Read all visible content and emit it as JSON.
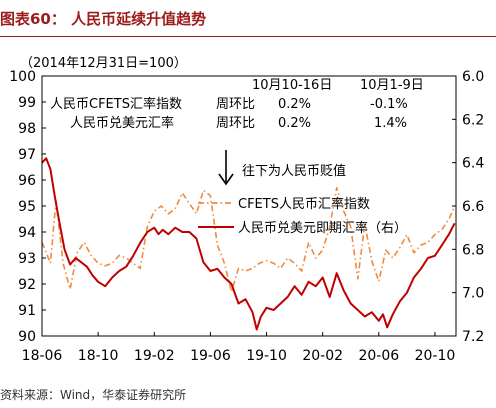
{
  "header": {
    "title": "图表60：  人民币延续升值趋势"
  },
  "footer": {
    "source": "资料来源：Wind，华泰证券研究所"
  },
  "chart_data": {
    "type": "line",
    "base_note": "（2014年12月31日=100）",
    "x_tick_labels": [
      "18-06",
      "18-10",
      "19-02",
      "19-06",
      "19-10",
      "20-02",
      "20-06",
      "20-10"
    ],
    "x_tick_months": [
      0,
      4,
      8,
      12,
      16,
      20,
      24,
      28
    ],
    "x_range_months": [
      0,
      29.5
    ],
    "ylim_left": [
      90,
      100
    ],
    "y_ticks_left": [
      90,
      91,
      92,
      93,
      94,
      95,
      96,
      97,
      98,
      99,
      100
    ],
    "ylim_right": [
      7.2,
      6.0
    ],
    "y_ticks_right": [
      "6.0",
      "6.2",
      "6.4",
      "6.6",
      "6.8",
      "7.0",
      "7.2"
    ],
    "y_ticks_right_values": [
      6.0,
      6.2,
      6.4,
      6.6,
      6.8,
      7.0,
      7.2
    ],
    "grid": false,
    "table": {
      "headers": [
        "10月10-16日",
        "10月1-9日"
      ],
      "rows": [
        {
          "name": "人民币CFETS汇率指数",
          "period": "周环比",
          "values": [
            "0.2%",
            "-0.1%"
          ]
        },
        {
          "name": "人民币兑美元汇率",
          "period": "周环比",
          "values": [
            "0.2%",
            "1.4%"
          ]
        }
      ]
    },
    "annotation": {
      "arrow_text": "往下为人民币贬值"
    },
    "legend": {
      "position": "center-right",
      "entries": [
        "CFETS人民币汇率指数",
        "人民币兑美元即期汇率（右）"
      ]
    },
    "colors": {
      "cfets": "#f08a3c",
      "usdcny": "#c00000",
      "title": "#9c1c1c"
    },
    "series": [
      {
        "name": "CFETS人民币汇率指数",
        "axis": "left",
        "style": "dash-dot",
        "x": [
          0,
          0.3,
          0.6,
          1.0,
          1.5,
          2.0,
          2.5,
          3.0,
          3.5,
          4.0,
          4.5,
          5.0,
          5.5,
          6.0,
          6.5,
          7.0,
          7.5,
          8.0,
          8.5,
          9.0,
          9.5,
          10.0,
          10.5,
          11.0,
          11.5,
          12.0,
          12.5,
          13.0,
          13.5,
          14.0,
          14.5,
          15.0,
          15.5,
          16.0,
          16.5,
          17.0,
          17.5,
          18.0,
          18.5,
          19.0,
          19.5,
          20.0,
          20.5,
          21.0,
          21.5,
          22.0,
          22.5,
          23.0,
          23.5,
          24.0,
          24.5,
          25.0,
          25.5,
          26.0,
          26.5,
          27.0,
          27.5,
          28.0,
          28.5,
          29.0,
          29.4
        ],
        "values": [
          93.6,
          93.2,
          92.8,
          95.2,
          92.8,
          91.8,
          93.2,
          93.6,
          93.1,
          92.8,
          92.7,
          92.8,
          93.1,
          93.0,
          92.8,
          92.6,
          94.2,
          94.8,
          95.0,
          94.7,
          94.9,
          95.5,
          95.1,
          94.7,
          95.6,
          95.4,
          93.5,
          92.8,
          91.7,
          92.6,
          92.5,
          92.6,
          92.8,
          92.9,
          92.8,
          92.6,
          93.0,
          92.8,
          92.5,
          93.6,
          93.0,
          93.3,
          94.2,
          95.7,
          94.8,
          94.2,
          92.2,
          94.3,
          92.9,
          92.1,
          93.3,
          93.0,
          93.4,
          93.9,
          93.2,
          93.5,
          93.6,
          93.9,
          94.1,
          94.5,
          95.0
        ]
      },
      {
        "name": "人民币兑美元即期汇率（右）",
        "axis": "right",
        "style": "solid",
        "x": [
          0,
          0.3,
          0.6,
          0.9,
          1.2,
          1.6,
          2.0,
          2.4,
          2.8,
          3.2,
          3.6,
          4.0,
          4.5,
          5.0,
          5.5,
          6.0,
          6.5,
          7.0,
          7.5,
          8.0,
          8.3,
          8.6,
          9.0,
          9.5,
          10.0,
          10.5,
          11.0,
          11.5,
          12.0,
          12.5,
          13.0,
          13.5,
          14.0,
          14.5,
          15.0,
          15.3,
          15.6,
          16.0,
          16.5,
          17.0,
          17.5,
          18.0,
          18.5,
          19.0,
          19.5,
          20.0,
          20.5,
          21.0,
          21.5,
          22.0,
          22.5,
          23.0,
          23.5,
          24.0,
          24.3,
          24.6,
          25.0,
          25.5,
          26.0,
          26.5,
          27.0,
          27.5,
          28.0,
          28.5,
          29.0,
          29.4
        ],
        "values": [
          6.4,
          6.38,
          6.43,
          6.55,
          6.66,
          6.8,
          6.87,
          6.84,
          6.86,
          6.88,
          6.92,
          6.95,
          6.97,
          6.93,
          6.9,
          6.88,
          6.83,
          6.77,
          6.72,
          6.7,
          6.73,
          6.71,
          6.73,
          6.7,
          6.72,
          6.72,
          6.75,
          6.86,
          6.9,
          6.89,
          6.93,
          6.96,
          7.05,
          7.03,
          7.09,
          7.17,
          7.11,
          7.07,
          7.08,
          7.05,
          7.02,
          6.97,
          7.01,
          6.95,
          6.97,
          6.93,
          7.02,
          6.91,
          6.99,
          7.05,
          7.08,
          7.11,
          7.09,
          7.13,
          7.1,
          7.16,
          7.1,
          7.04,
          7.0,
          6.93,
          6.89,
          6.84,
          6.83,
          6.78,
          6.73,
          6.68
        ]
      }
    ]
  }
}
